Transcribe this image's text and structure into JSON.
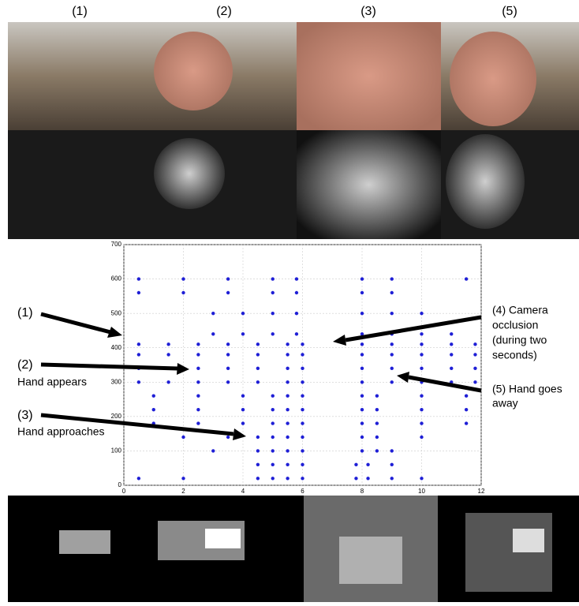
{
  "panel_labels": [
    "(1)",
    "(2)",
    "(3)",
    "(5)"
  ],
  "annotations": {
    "a1": [
      "(1)"
    ],
    "a2": [
      "(2)",
      "Hand appears"
    ],
    "a3": [
      "(3)",
      "Hand approaches"
    ],
    "a4": [
      "(4) Camera",
      "occlusion",
      "(during two",
      "seconds)"
    ],
    "a5": [
      "(5) Hand goes",
      "away"
    ]
  },
  "chart_data": {
    "type": "scatter",
    "color": "#1f1fd6",
    "grid": true,
    "xlim": [
      0,
      12
    ],
    "ylim": [
      0,
      700
    ],
    "xticks": [
      0,
      2,
      4,
      6,
      8,
      10,
      12
    ],
    "yticks": [
      0,
      100,
      200,
      300,
      400,
      500,
      600,
      700
    ],
    "series": [
      {
        "x": [
          0.5,
          2,
          3.5,
          5,
          5.8,
          8,
          9,
          11.5,
          0.5,
          2,
          3.5,
          5,
          5.8,
          8,
          9,
          3,
          4,
          5,
          5.8,
          8,
          9,
          10,
          3,
          4,
          5,
          5.8,
          8,
          9,
          10,
          11,
          0.5,
          1.5,
          2.5,
          3.5,
          4.5,
          5.5,
          6,
          8,
          9,
          10,
          11,
          11.8,
          0.5,
          1.5,
          2.5,
          3.5,
          4.5,
          5.5,
          6,
          8,
          9,
          10,
          11,
          11.8,
          0.5,
          1.5,
          2.5,
          3.5,
          4.5,
          5.5,
          6,
          8,
          9,
          10,
          11,
          11.8,
          0.5,
          1.5,
          2.5,
          3.5,
          4.5,
          5.5,
          6,
          8,
          9,
          10,
          11,
          11.8,
          1,
          2.5,
          4,
          5,
          5.5,
          6,
          8,
          8.5,
          10,
          11.5,
          1,
          2.5,
          4,
          5,
          5.5,
          6,
          8,
          8.5,
          10,
          11.5,
          1,
          2.5,
          4,
          5,
          5.5,
          6,
          8,
          8.5,
          10,
          11.5,
          2,
          3.5,
          4.5,
          5,
          5.5,
          6,
          8,
          8.5,
          10,
          3,
          4.5,
          5,
          5.5,
          6,
          8,
          8.5,
          9,
          4.5,
          5,
          5.5,
          6,
          7.8,
          8.2,
          9,
          0.5,
          2,
          4.5,
          5,
          5.5,
          6,
          7.8,
          8.2,
          9,
          10
        ],
        "y": [
          600,
          600,
          600,
          600,
          600,
          600,
          600,
          600,
          560,
          560,
          560,
          560,
          560,
          560,
          560,
          500,
          500,
          500,
          500,
          500,
          500,
          500,
          440,
          440,
          440,
          440,
          440,
          440,
          440,
          440,
          410,
          410,
          410,
          410,
          410,
          410,
          410,
          410,
          410,
          410,
          410,
          410,
          380,
          380,
          380,
          380,
          380,
          380,
          380,
          380,
          380,
          380,
          380,
          380,
          340,
          340,
          340,
          340,
          340,
          340,
          340,
          340,
          340,
          340,
          340,
          340,
          300,
          300,
          300,
          300,
          300,
          300,
          300,
          300,
          300,
          300,
          300,
          300,
          260,
          260,
          260,
          260,
          260,
          260,
          260,
          260,
          260,
          260,
          220,
          220,
          220,
          220,
          220,
          220,
          220,
          220,
          220,
          220,
          180,
          180,
          180,
          180,
          180,
          180,
          180,
          180,
          180,
          180,
          140,
          140,
          140,
          140,
          140,
          140,
          140,
          140,
          140,
          100,
          100,
          100,
          100,
          100,
          100,
          100,
          100,
          60,
          60,
          60,
          60,
          60,
          60,
          60,
          20,
          20,
          20,
          20,
          20,
          20,
          20,
          20,
          20,
          20
        ]
      }
    ]
  }
}
